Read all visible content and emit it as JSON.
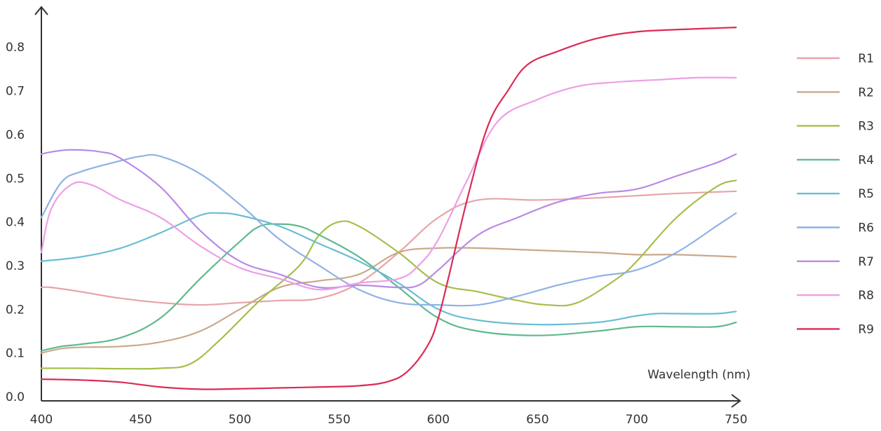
{
  "chart_data": {
    "type": "line",
    "title": "",
    "xlabel": "Wavelength (nm)",
    "ylabel": "",
    "xlim": [
      400,
      752
    ],
    "ylim": [
      0,
      0.86
    ],
    "x_ticks": [
      400,
      450,
      500,
      550,
      600,
      650,
      700,
      750
    ],
    "x_tick_labels": [
      "400",
      "450",
      "500",
      "550",
      "600",
      "650",
      "700",
      "750"
    ],
    "y_ticks": [
      0,
      0.1,
      0.2,
      0.3,
      0.4,
      0.5,
      0.6,
      0.7,
      0.8
    ],
    "y_tick_labels": [
      "0.0",
      "0.1",
      "0.2",
      "0.3",
      "0.4",
      "0.5",
      "0.6",
      "0.7",
      "0.8"
    ],
    "grid": false,
    "legend": "right",
    "series": [
      {
        "name": "R1",
        "color": "#e8a4a9",
        "x": [
          400,
          405,
          420,
          440,
          460,
          480,
          500,
          520,
          540,
          560,
          580,
          600,
          620,
          650,
          680,
          700,
          720,
          750
        ],
        "y": [
          0.25,
          0.25,
          0.24,
          0.225,
          0.215,
          0.21,
          0.215,
          0.22,
          0.225,
          0.26,
          0.33,
          0.41,
          0.45,
          0.45,
          0.455,
          0.46,
          0.465,
          0.47
        ]
      },
      {
        "name": "R2",
        "color": "#c9a98a",
        "x": [
          400,
          410,
          420,
          440,
          460,
          480,
          500,
          520,
          540,
          560,
          580,
          600,
          620,
          650,
          680,
          700,
          720,
          750
        ],
        "y": [
          0.1,
          0.11,
          0.113,
          0.115,
          0.125,
          0.15,
          0.2,
          0.25,
          0.265,
          0.28,
          0.33,
          0.34,
          0.34,
          0.335,
          0.33,
          0.325,
          0.325,
          0.32
        ]
      },
      {
        "name": "R3",
        "color": "#a4bf4a",
        "x": [
          400,
          420,
          440,
          460,
          475,
          490,
          510,
          530,
          540,
          550,
          560,
          580,
          600,
          620,
          640,
          655,
          670,
          690,
          700,
          720,
          740,
          750
        ],
        "y": [
          0.065,
          0.065,
          0.064,
          0.065,
          0.075,
          0.13,
          0.22,
          0.3,
          0.37,
          0.4,
          0.39,
          0.33,
          0.26,
          0.24,
          0.22,
          0.21,
          0.215,
          0.27,
          0.31,
          0.41,
          0.48,
          0.495
        ]
      },
      {
        "name": "R4",
        "color": "#5fba8f",
        "x": [
          400,
          410,
          420,
          440,
          460,
          480,
          500,
          510,
          520,
          530,
          540,
          560,
          580,
          600,
          620,
          650,
          680,
          700,
          720,
          740,
          750
        ],
        "y": [
          0.105,
          0.115,
          0.12,
          0.135,
          0.18,
          0.27,
          0.355,
          0.39,
          0.395,
          0.39,
          0.37,
          0.32,
          0.25,
          0.18,
          0.15,
          0.14,
          0.15,
          0.16,
          0.16,
          0.16,
          0.17
        ]
      },
      {
        "name": "R5",
        "color": "#6bbdd6",
        "x": [
          400,
          420,
          440,
          460,
          480,
          490,
          500,
          520,
          540,
          560,
          580,
          600,
          620,
          650,
          680,
          700,
          710,
          720,
          740,
          750
        ],
        "y": [
          0.31,
          0.32,
          0.34,
          0.375,
          0.415,
          0.42,
          0.415,
          0.39,
          0.35,
          0.31,
          0.26,
          0.2,
          0.175,
          0.165,
          0.17,
          0.185,
          0.19,
          0.19,
          0.19,
          0.195
        ]
      },
      {
        "name": "R6",
        "color": "#8fb2e6",
        "x": [
          400,
          410,
          420,
          440,
          450,
          460,
          480,
          500,
          520,
          540,
          560,
          580,
          600,
          620,
          640,
          660,
          680,
          700,
          720,
          740,
          750
        ],
        "y": [
          0.41,
          0.49,
          0.515,
          0.54,
          0.55,
          0.55,
          0.51,
          0.44,
          0.36,
          0.3,
          0.245,
          0.215,
          0.21,
          0.21,
          0.23,
          0.255,
          0.275,
          0.29,
          0.33,
          0.39,
          0.42
        ]
      },
      {
        "name": "R7",
        "color": "#b98ae6",
        "x": [
          400,
          405,
          415,
          430,
          440,
          460,
          480,
          500,
          520,
          540,
          560,
          580,
          590,
          600,
          620,
          640,
          660,
          680,
          700,
          720,
          740,
          750
        ],
        "y": [
          0.555,
          0.56,
          0.565,
          0.56,
          0.545,
          0.48,
          0.38,
          0.31,
          0.28,
          0.25,
          0.255,
          0.25,
          0.255,
          0.29,
          0.37,
          0.41,
          0.445,
          0.465,
          0.475,
          0.505,
          0.535,
          0.555
        ]
      },
      {
        "name": "R8",
        "color": "#ee9fe6",
        "x": [
          400,
          405,
          415,
          425,
          440,
          460,
          480,
          500,
          520,
          540,
          560,
          580,
          590,
          600,
          615,
          630,
          650,
          670,
          690,
          710,
          730,
          750
        ],
        "y": [
          0.33,
          0.43,
          0.485,
          0.485,
          0.45,
          0.41,
          0.345,
          0.295,
          0.27,
          0.245,
          0.26,
          0.27,
          0.3,
          0.36,
          0.5,
          0.63,
          0.68,
          0.71,
          0.72,
          0.725,
          0.73,
          0.73
        ]
      },
      {
        "name": "R9",
        "color": "#dc2a55",
        "x": [
          400,
          420,
          440,
          460,
          480,
          500,
          520,
          540,
          560,
          575,
          585,
          595,
          600,
          605,
          615,
          625,
          635,
          645,
          660,
          680,
          700,
          720,
          750
        ],
        "y": [
          0.04,
          0.038,
          0.033,
          0.022,
          0.017,
          0.018,
          0.02,
          0.022,
          0.025,
          0.035,
          0.06,
          0.12,
          0.18,
          0.27,
          0.46,
          0.62,
          0.7,
          0.76,
          0.79,
          0.82,
          0.835,
          0.84,
          0.845
        ]
      }
    ]
  }
}
